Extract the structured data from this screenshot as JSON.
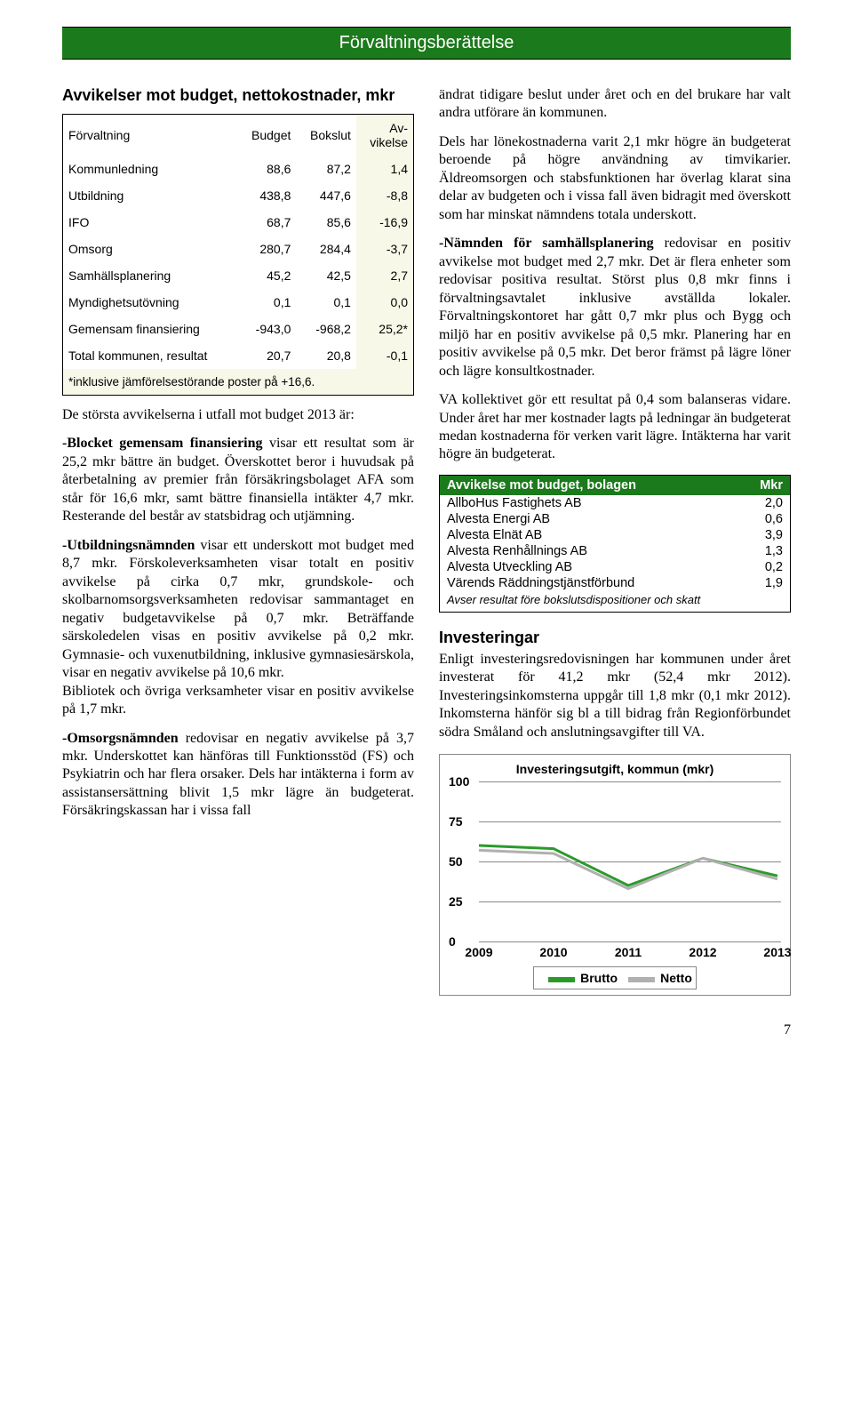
{
  "header": "Förvaltningsberättelse",
  "left": {
    "heading": "Avvikelser mot budget, nettokostnader, mkr",
    "table": {
      "headers": [
        "Förvaltning",
        "Budget",
        "Bokslut",
        "Av-\nvikelse"
      ],
      "rows": [
        [
          "Kommunledning",
          "88,6",
          "87,2",
          "1,4"
        ],
        [
          "Utbildning",
          "438,8",
          "447,6",
          "-8,8"
        ],
        [
          "IFO",
          "68,7",
          "85,6",
          "-16,9"
        ],
        [
          "Omsorg",
          "280,7",
          "284,4",
          "-3,7"
        ],
        [
          "Samhällsplanering",
          "45,2",
          "42,5",
          "2,7"
        ],
        [
          "Myndighetsutövning",
          "0,1",
          "0,1",
          "0,0"
        ],
        [
          "Gemensam finansiering",
          "-943,0",
          "-968,2",
          "25,2*"
        ],
        [
          "Total kommunen, resultat",
          "20,7",
          "20,8",
          "-0,1"
        ]
      ],
      "footnote": "*inklusive jämförelsestörande poster på +16,6."
    },
    "intro": "De största avvikelserna i utfall mot budget 2013 är:",
    "blk1_lead": "-Blocket gemensam finansiering",
    "blk1_rest": " visar ett resultat som är 25,2 mkr bättre än budget. Överskottet beror i huvudsak på återbetalning av premier från försäkringsbolaget AFA som står för 16,6 mkr, samt bättre finansiella intäkter 4,7 mkr. Resterande del består av statsbidrag och utjämning.",
    "blk2_lead": "-Utbildningsnämnden",
    "blk2_rest": " visar ett underskott mot budget med 8,7 mkr. Förskoleverksamheten visar totalt en positiv avvikelse på cirka 0,7 mkr, grundskole- och skolbarnomsorgsverksamheten redovisar sammantaget en negativ budgetavvikelse på 0,7 mkr. Beträffande särskoledelen visas en positiv avvikelse på 0,2 mkr. Gymnasie- och vuxenutbildning, inklusive gymnasiesärskola, visar en negativ avvikelse på 10,6 mkr.",
    "blk2_extra": "Bibliotek och övriga verksamheter visar en positiv avvikelse på 1,7 mkr.",
    "blk3_lead": "-Omsorgsnämnden",
    "blk3_rest": " redovisar en negativ avvikelse på 3,7 mkr. Underskottet kan hänföras till Funktionsstöd (FS) och Psykiatrin och har flera orsaker. Dels har intäkterna i form av assistansersättning blivit 1,5 mkr lägre än budgeterat. Försäkringskassan har i vissa fall"
  },
  "right": {
    "p1": "ändrat tidigare beslut under året och en del brukare har valt andra utförare än kommunen.",
    "p2": "Dels har lönekostnaderna varit 2,1 mkr högre än budgeterat beroende på högre användning av timvikarier. Äldreomsorgen och stabsfunktionen har överlag klarat sina delar av budgeten och i vissa fall även bidragit med överskott som har minskat nämndens totala underskott.",
    "p3_lead": "-Nämnden för samhällsplanering",
    "p3_rest": " redovisar en positiv avvikelse mot budget med 2,7 mkr. Det är flera enheter som redovisar positiva resultat. Störst plus 0,8 mkr finns i förvaltningsavtalet inklusive avställda lokaler. Förvaltningskontoret har gått 0,7 mkr plus och Bygg och miljö har en positiv avvikelse på 0,5 mkr. Planering har en positiv avvikelse på 0,5 mkr. Det beror främst på lägre löner och lägre konsultkostnader.",
    "p4": "VA kollektivet gör ett resultat på 0,4 som balanseras vidare. Under året har mer kostnader lagts på ledningar än budgeterat medan kostnaderna för verken varit lägre. Intäkterna har varit högre än budgeterat.",
    "bolag": {
      "header_label": "Avvikelse mot budget, bolagen",
      "header_unit": "Mkr",
      "rows": [
        [
          "AllboHus Fastighets AB",
          "2,0"
        ],
        [
          "Alvesta Energi AB",
          "0,6"
        ],
        [
          "Alvesta Elnät AB",
          "3,9"
        ],
        [
          "Alvesta Renhållnings AB",
          "1,3"
        ],
        [
          "Alvesta Utveckling AB",
          "0,2"
        ],
        [
          "Värends Räddningstjänstförbund",
          "1,9"
        ]
      ],
      "footnote": "Avser resultat före bokslutsdispositioner och skatt"
    },
    "invest_heading": "Investeringar",
    "invest_p": "Enligt investeringsredovisningen har kommunen under året investerat för 41,2 mkr (52,4 mkr 2012). Investeringsinkomsterna uppgår till 1,8 mkr (0,1 mkr 2012). Inkomsterna hänför sig bl a till bidrag från Regionförbundet södra Småland och anslutningsavgifter till VA.",
    "chart": {
      "type": "line",
      "title": "Investeringsutgift, kommun (mkr)",
      "x_labels": [
        "2009",
        "2010",
        "2011",
        "2012",
        "2013"
      ],
      "y_ticks": [
        0,
        25,
        50,
        75,
        100
      ],
      "ylim": [
        0,
        100
      ],
      "series": [
        {
          "name": "Brutto",
          "color": "#2a9b2a",
          "width": 3,
          "values": [
            60,
            58,
            35,
            52,
            41
          ]
        },
        {
          "name": "Netto",
          "color": "#b0b0b0",
          "width": 3,
          "values": [
            57,
            55,
            33,
            52,
            39
          ]
        }
      ],
      "grid_color": "#888888",
      "background_color": "#ffffff",
      "label_fontsize": 14
    }
  },
  "page_number": "7"
}
